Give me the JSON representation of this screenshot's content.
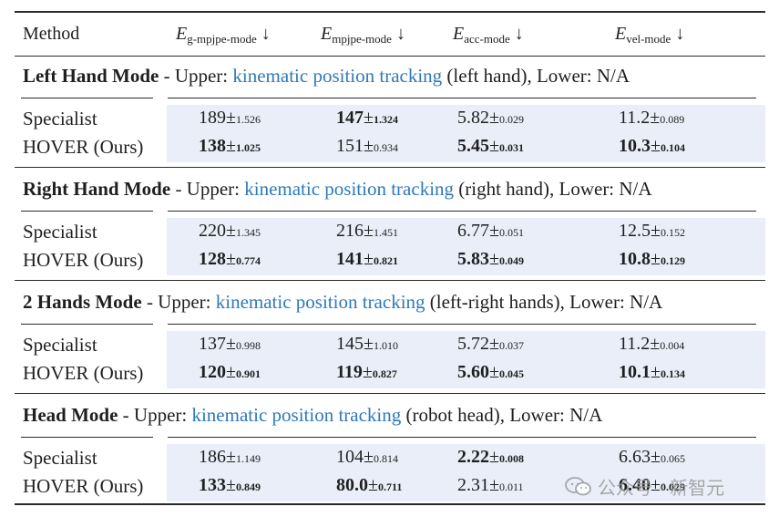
{
  "header": {
    "method": "Method",
    "col1": {
      "sym": "E",
      "sub": "g-mpjpe-mode",
      "arrow": "↓"
    },
    "col2": {
      "sym": "E",
      "sub": "mpjpe-mode",
      "arrow": "↓"
    },
    "col3": {
      "sym": "E",
      "sub": "acc-mode",
      "arrow": "↓"
    },
    "col4": {
      "sym": "E",
      "sub": "vel-mode",
      "arrow": "↓"
    }
  },
  "sections": [
    {
      "mode": "Left Hand Mode",
      "pre": " - Upper: ",
      "hl": "kinematic position tracking",
      "post": " (left hand), Lower: N/A",
      "rows": [
        {
          "label": "Specialist",
          "cells": [
            {
              "v": "189",
              "s": "1.526",
              "b": false
            },
            {
              "v": "147",
              "s": "1.324",
              "b": true
            },
            {
              "v": "5.82",
              "s": "0.029",
              "b": false
            },
            {
              "v": "11.2",
              "s": "0.089",
              "b": false
            }
          ]
        },
        {
          "label": "HOVER (Ours)",
          "cells": [
            {
              "v": "138",
              "s": "1.025",
              "b": true
            },
            {
              "v": "151",
              "s": "0.934",
              "b": false
            },
            {
              "v": "5.45",
              "s": "0.031",
              "b": true
            },
            {
              "v": "10.3",
              "s": "0.104",
              "b": true
            }
          ]
        }
      ]
    },
    {
      "mode": "Right Hand Mode",
      "pre": " - Upper: ",
      "hl": "kinematic position tracking",
      "post": " (right hand), Lower: N/A",
      "rows": [
        {
          "label": "Specialist",
          "cells": [
            {
              "v": "220",
              "s": "1.345",
              "b": false
            },
            {
              "v": "216",
              "s": "1.451",
              "b": false
            },
            {
              "v": "6.77",
              "s": "0.051",
              "b": false
            },
            {
              "v": "12.5",
              "s": "0.152",
              "b": false
            }
          ]
        },
        {
          "label": "HOVER (Ours)",
          "cells": [
            {
              "v": "128",
              "s": "0.774",
              "b": true
            },
            {
              "v": "141",
              "s": "0.821",
              "b": true
            },
            {
              "v": "5.83",
              "s": "0.049",
              "b": true
            },
            {
              "v": "10.8",
              "s": "0.129",
              "b": true
            }
          ]
        }
      ]
    },
    {
      "mode": "2 Hands Mode",
      "pre": " - Upper: ",
      "hl": "kinematic position tracking",
      "post": " (left-right hands), Lower: N/A",
      "rows": [
        {
          "label": "Specialist",
          "cells": [
            {
              "v": "137",
              "s": "0.998",
              "b": false
            },
            {
              "v": "145",
              "s": "1.010",
              "b": false
            },
            {
              "v": "5.72",
              "s": "0.037",
              "b": false
            },
            {
              "v": "11.2",
              "s": "0.004",
              "b": false
            }
          ]
        },
        {
          "label": "HOVER (Ours)",
          "cells": [
            {
              "v": "120",
              "s": "0.901",
              "b": true
            },
            {
              "v": "119",
              "s": "0.827",
              "b": true
            },
            {
              "v": "5.60",
              "s": "0.045",
              "b": true
            },
            {
              "v": "10.1",
              "s": "0.134",
              "b": true
            }
          ]
        }
      ]
    },
    {
      "mode": "Head Mode",
      "pre": " - Upper: ",
      "hl": "kinematic position tracking",
      "post": " (robot head), Lower: N/A",
      "rows": [
        {
          "label": "Specialist",
          "cells": [
            {
              "v": "186",
              "s": "1.149",
              "b": false
            },
            {
              "v": "104",
              "s": "0.814",
              "b": false
            },
            {
              "v": "2.22",
              "s": "0.008",
              "b": true
            },
            {
              "v": "6.63",
              "s": "0.065",
              "b": false
            }
          ]
        },
        {
          "label": "HOVER (Ours)",
          "cells": [
            {
              "v": "133",
              "s": "0.849",
              "b": true
            },
            {
              "v": "80.0",
              "s": "0.711",
              "b": true
            },
            {
              "v": "2.31",
              "s": "0.011",
              "b": false
            },
            {
              "v": "6.40",
              "s": "0.029",
              "b": true
            }
          ]
        }
      ]
    }
  ],
  "watermark": "公众号 · 新智元",
  "colors": {
    "highlight": "#2f79b8",
    "shade": "#e9eef8"
  }
}
